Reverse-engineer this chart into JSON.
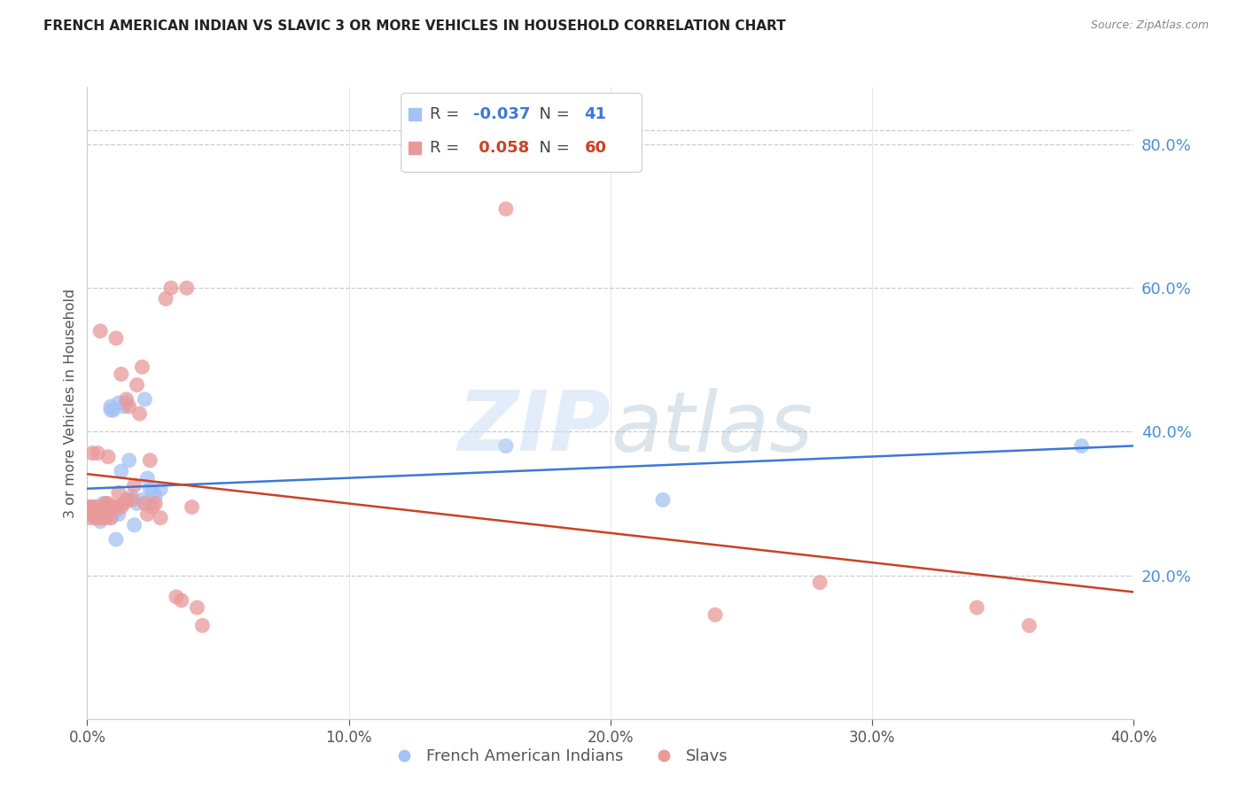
{
  "title": "FRENCH AMERICAN INDIAN VS SLAVIC 3 OR MORE VEHICLES IN HOUSEHOLD CORRELATION CHART",
  "source": "Source: ZipAtlas.com",
  "ylabel": "3 or more Vehicles in Household",
  "xlim": [
    0.0,
    0.4
  ],
  "ylim": [
    0.0,
    0.88
  ],
  "xticks": [
    0.0,
    0.1,
    0.2,
    0.3,
    0.4
  ],
  "yticks_right": [
    0.2,
    0.4,
    0.6,
    0.8
  ],
  "legend1_label": "French American Indians",
  "legend2_label": "Slavs",
  "R1": -0.037,
  "N1": 41,
  "R2": 0.058,
  "N2": 60,
  "color_blue": "#a4c2f4",
  "color_pink": "#ea9999",
  "color_blue_line": "#3c78d8",
  "color_pink_line": "#cc4125",
  "blue_x": [
    0.001,
    0.002,
    0.003,
    0.003,
    0.004,
    0.004,
    0.005,
    0.005,
    0.005,
    0.006,
    0.006,
    0.007,
    0.007,
    0.008,
    0.008,
    0.009,
    0.009,
    0.009,
    0.01,
    0.01,
    0.011,
    0.011,
    0.012,
    0.012,
    0.013,
    0.014,
    0.015,
    0.016,
    0.017,
    0.018,
    0.019,
    0.021,
    0.022,
    0.023,
    0.024,
    0.025,
    0.026,
    0.028,
    0.16,
    0.22,
    0.38
  ],
  "blue_y": [
    0.295,
    0.295,
    0.29,
    0.285,
    0.295,
    0.28,
    0.29,
    0.285,
    0.275,
    0.3,
    0.285,
    0.29,
    0.285,
    0.29,
    0.285,
    0.435,
    0.43,
    0.28,
    0.43,
    0.285,
    0.29,
    0.25,
    0.285,
    0.44,
    0.345,
    0.435,
    0.44,
    0.36,
    0.31,
    0.27,
    0.3,
    0.305,
    0.445,
    0.335,
    0.32,
    0.315,
    0.31,
    0.32,
    0.38,
    0.305,
    0.38
  ],
  "pink_x": [
    0.001,
    0.001,
    0.002,
    0.002,
    0.002,
    0.003,
    0.003,
    0.003,
    0.004,
    0.004,
    0.004,
    0.005,
    0.005,
    0.005,
    0.006,
    0.006,
    0.006,
    0.007,
    0.007,
    0.007,
    0.008,
    0.008,
    0.008,
    0.009,
    0.009,
    0.01,
    0.01,
    0.011,
    0.011,
    0.012,
    0.013,
    0.013,
    0.014,
    0.015,
    0.015,
    0.016,
    0.017,
    0.018,
    0.019,
    0.02,
    0.021,
    0.022,
    0.023,
    0.024,
    0.025,
    0.026,
    0.028,
    0.03,
    0.032,
    0.034,
    0.036,
    0.038,
    0.04,
    0.042,
    0.044,
    0.16,
    0.24,
    0.28,
    0.34,
    0.36
  ],
  "pink_y": [
    0.295,
    0.28,
    0.295,
    0.285,
    0.37,
    0.295,
    0.29,
    0.28,
    0.29,
    0.37,
    0.28,
    0.285,
    0.28,
    0.54,
    0.295,
    0.28,
    0.29,
    0.295,
    0.3,
    0.28,
    0.295,
    0.3,
    0.365,
    0.295,
    0.28,
    0.295,
    0.295,
    0.295,
    0.53,
    0.315,
    0.295,
    0.48,
    0.3,
    0.445,
    0.305,
    0.435,
    0.305,
    0.325,
    0.465,
    0.425,
    0.49,
    0.3,
    0.285,
    0.36,
    0.295,
    0.3,
    0.28,
    0.585,
    0.6,
    0.17,
    0.165,
    0.6,
    0.295,
    0.155,
    0.13,
    0.71,
    0.145,
    0.19,
    0.155,
    0.13
  ]
}
